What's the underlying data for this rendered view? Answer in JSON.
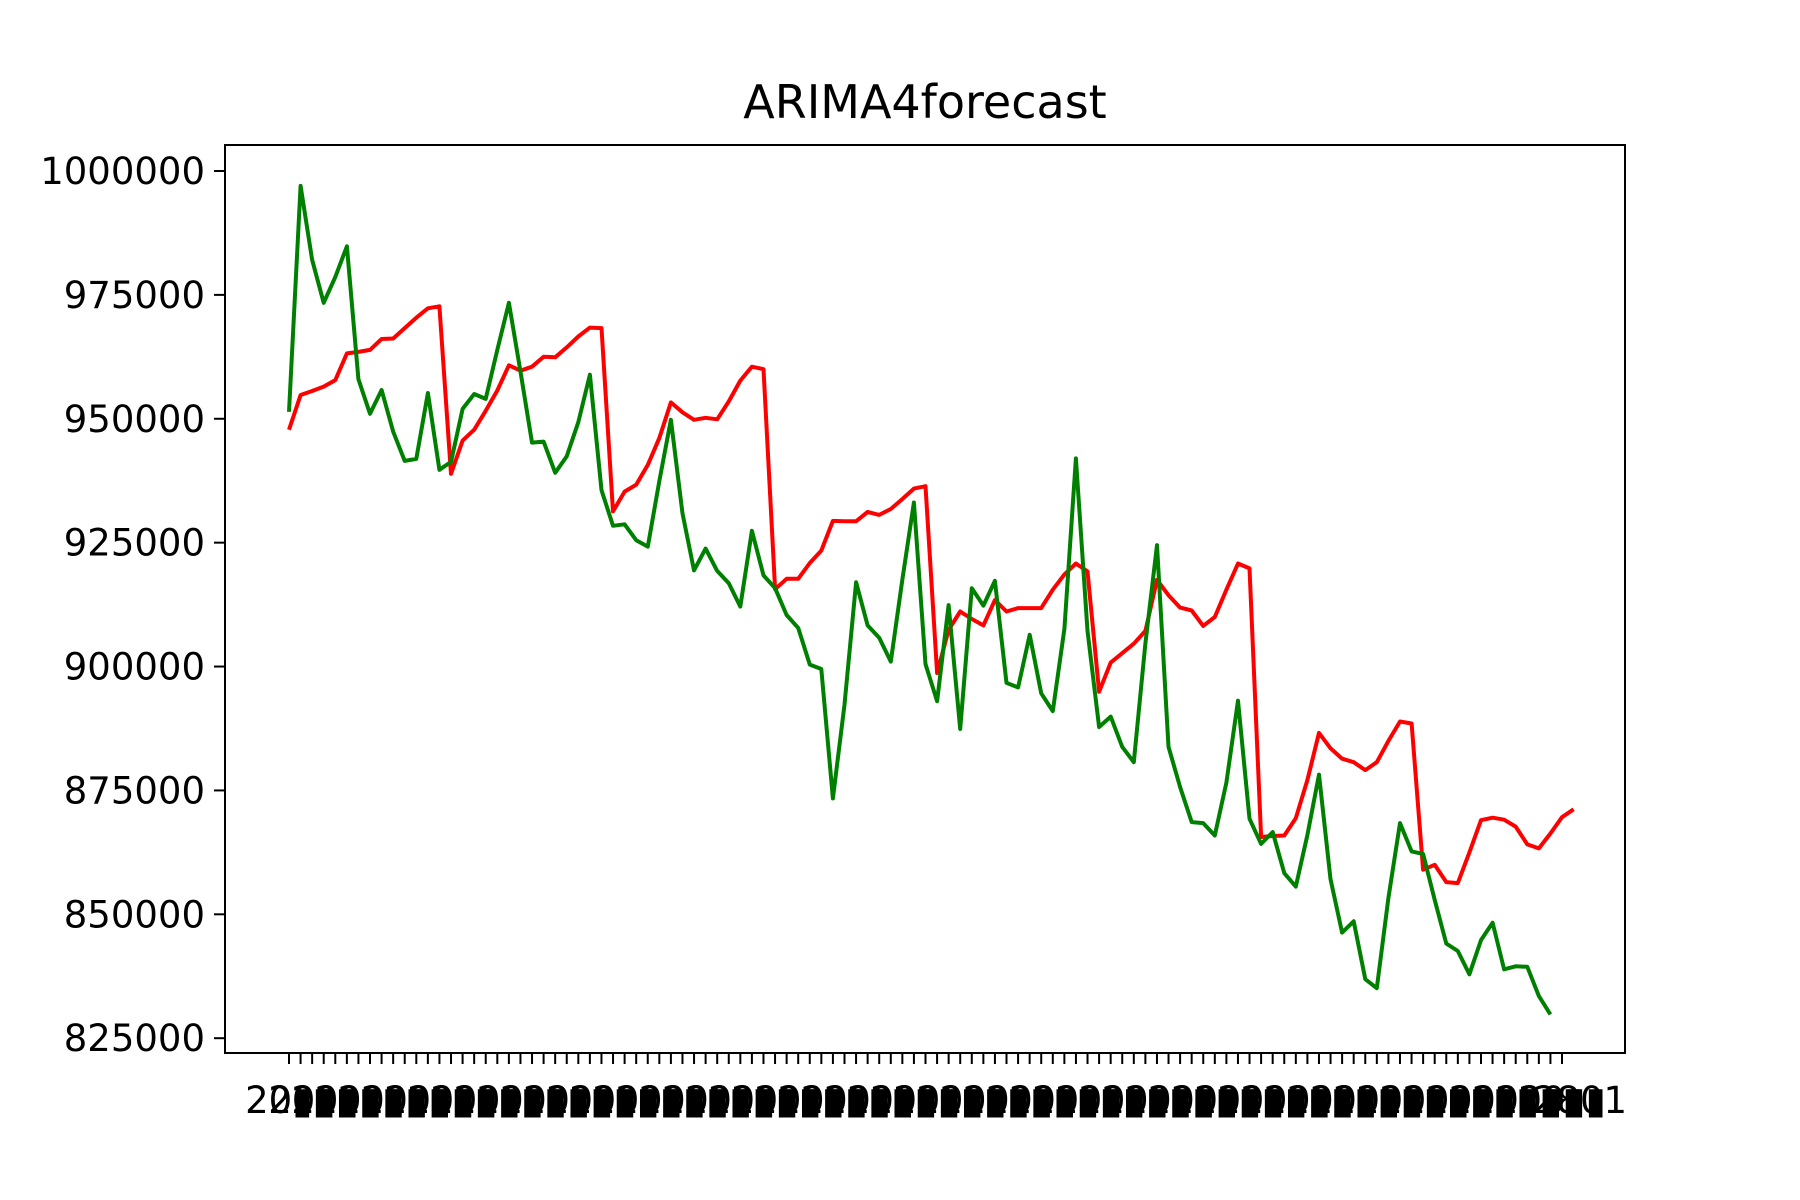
{
  "chart_data": {
    "type": "line",
    "title": "ARIMA4forecast",
    "xlabel": "",
    "ylabel": "",
    "ylim": [
      820000,
      1005000
    ],
    "yticks": [
      825000,
      850000,
      875000,
      900000,
      925000,
      950000,
      975000,
      1000000
    ],
    "ytick_labels": [
      "825000",
      "850000",
      "875000",
      "900000",
      "925000",
      "950000",
      "975000",
      "1000000"
    ],
    "x_count": 111,
    "x_labels_note": "x tick labels are overlapping and illegible; the last one reads \"...2801\"",
    "x_last_label": "2801",
    "grid": false,
    "legend": "none",
    "series": [
      {
        "color": "#ff0000",
        "values": [
          947800,
          954800,
          955600,
          956500,
          957800,
          963200,
          963500,
          963900,
          966100,
          966200,
          968300,
          970400,
          972300,
          972700,
          938900,
          945600,
          947800,
          951600,
          955700,
          960800,
          959700,
          960500,
          962500,
          962400,
          964400,
          966600,
          968400,
          968300,
          931300,
          935300,
          936700,
          940700,
          946100,
          953300,
          951300,
          949800,
          950200,
          949900,
          953500,
          957700,
          960500,
          960000,
          915600,
          917700,
          917700,
          920900,
          923400,
          929400,
          929300,
          929300,
          931200,
          930600,
          931800,
          933800,
          935900,
          936400,
          898700,
          907400,
          911100,
          909600,
          908300,
          913400,
          911100,
          911800,
          911800,
          911800,
          915500,
          918600,
          920800,
          919200,
          894900,
          900800,
          902700,
          904600,
          907200,
          917500,
          914400,
          911900,
          911300,
          908200,
          910000,
          915500,
          920800,
          919800,
          865600,
          865800,
          865900,
          869400,
          877100,
          886600,
          883500,
          881400,
          880700,
          879100,
          880700,
          885000,
          888900,
          888500,
          859000,
          860000,
          856500,
          856300,
          862500,
          869000,
          869500,
          869100,
          867700,
          864100,
          863300,
          866300,
          869600,
          871200
        ]
      },
      {
        "color": "#008000",
        "values": [
          951400,
          997000,
          982100,
          973400,
          978600,
          984800,
          958000,
          951000,
          955800,
          947400,
          941500,
          941900,
          955200,
          939700,
          941300,
          952000,
          955000,
          954000,
          963900,
          973400,
          959500,
          945200,
          945400,
          939100,
          942400,
          949300,
          958900,
          935600,
          928400,
          928700,
          925500,
          924200,
          937400,
          949800,
          930900,
          919400,
          923800,
          919300,
          916800,
          912100,
          927400,
          918400,
          915800,
          910400,
          907800,
          900400,
          899500,
          873400,
          892300,
          917000,
          908300,
          905800,
          901000,
          917600,
          933100,
          900500,
          893000,
          912400,
          887400,
          915800,
          912300,
          917300,
          896700,
          895800,
          906400,
          894600,
          891000,
          907600,
          942000,
          907200,
          887800,
          889900,
          883800,
          880700,
          904700,
          924500,
          883800,
          875700,
          868600,
          868400,
          865900,
          876600,
          893100,
          869300,
          864200,
          866600,
          858300,
          855600,
          866000,
          878200,
          857100,
          846300,
          848600,
          836900,
          835100,
          853300,
          868400,
          862700,
          862200,
          852900,
          844100,
          842600,
          837900,
          844800,
          848300,
          838900,
          839500,
          839400,
          833500,
          829800
        ]
      }
    ]
  }
}
